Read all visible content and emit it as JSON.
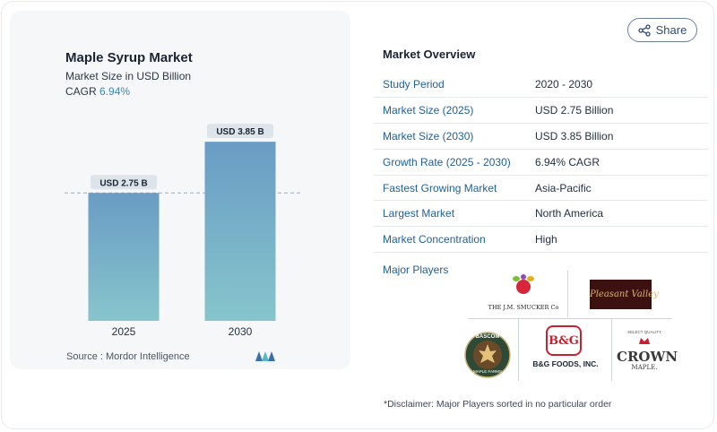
{
  "share_label": "Share",
  "chart_panel": {
    "title": "Maple Syrup Market",
    "subtitle": "Market Size in USD Billion",
    "cagr_label": "CAGR",
    "cagr_value": "6.94%",
    "source": "Source :  Mordor Intelligence"
  },
  "chart_data": {
    "type": "bar",
    "categories": [
      "2025",
      "2030"
    ],
    "values": [
      2.75,
      3.85
    ],
    "data_labels": [
      "USD 2.75 B",
      "USD 3.85 B"
    ],
    "title": "Maple Syrup Market",
    "subtitle": "Market Size in USD Billion",
    "xlabel": "",
    "ylabel": "",
    "ylim": [
      0,
      4.2
    ],
    "grid": false,
    "reference_line": 2.75,
    "bar_color_top": "#6a9cc4",
    "bar_color_bottom": "#86c5cc"
  },
  "overview": {
    "title": "Market Overview",
    "rows": [
      {
        "key": "Study Period",
        "value": "2020 - 2030"
      },
      {
        "key": "Market Size (2025)",
        "value": "USD 2.75 Billion"
      },
      {
        "key": "Market Size (2030)",
        "value": "USD 3.85 Billion"
      },
      {
        "key": "Growth Rate (2025 - 2030)",
        "value": "6.94% CAGR"
      },
      {
        "key": "Fastest Growing Market",
        "value": "Asia-Pacific"
      },
      {
        "key": "Largest Market",
        "value": "North America"
      },
      {
        "key": "Market Concentration",
        "value": "High"
      }
    ],
    "players_label": "Major Players"
  },
  "players": {
    "smucker": "THE J.M. SMUCKER Co",
    "pleasant_valley": "Pleasant Valley",
    "bascom_top": "BASCOM",
    "bascom_bottom": "MAPLE FARMS",
    "bg_mark": "B&G",
    "bg_name": "B&G FOODS, INC.",
    "crown_top": "SELECT QUALITY",
    "crown_name": "CROWN",
    "crown_sub": "MAPLE."
  },
  "disclaimer": "*Disclaimer: Major Players sorted in no particular order",
  "colors": {
    "accent": "#1f5f96",
    "cagr": "#3c86b8"
  }
}
